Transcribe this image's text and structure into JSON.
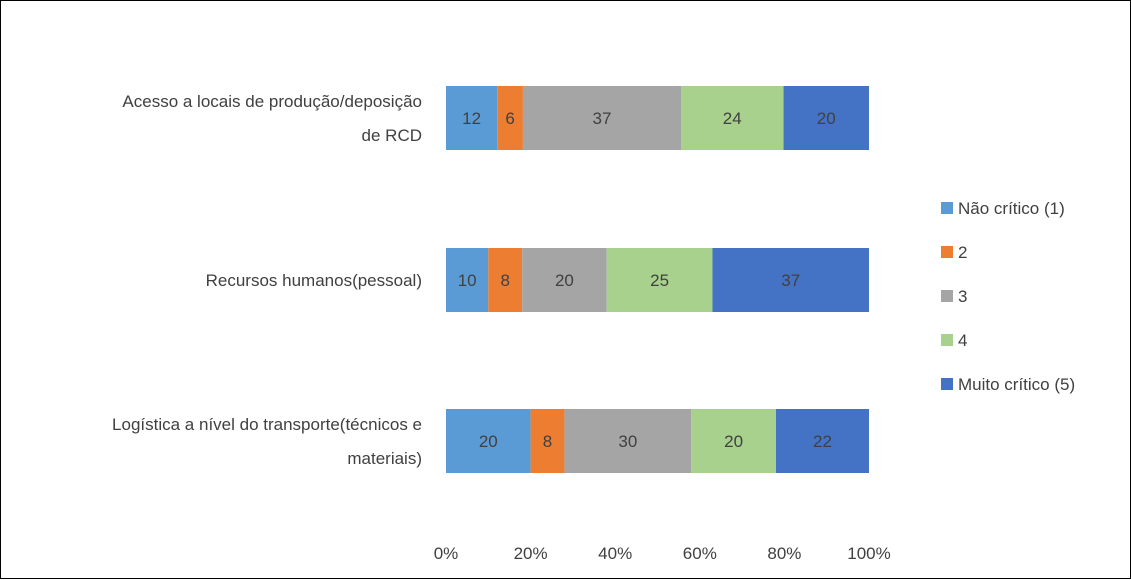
{
  "chart_data": {
    "type": "bar",
    "orientation": "horizontal",
    "stacked": "percent",
    "title": "",
    "xlabel": "",
    "ylabel": "",
    "categories": [
      "Acesso a locais de produção/deposição de RCD",
      "Recursos humanos(pessoal)",
      "Logística a nível do transporte(técnicos e materiais)"
    ],
    "category_lines": [
      [
        "Acesso a locais de produção/deposição",
        "de RCD"
      ],
      [
        "Recursos humanos(pessoal)"
      ],
      [
        "Logística a nível do transporte(técnicos e",
        "materiais)"
      ]
    ],
    "series": [
      {
        "name": "Não crítico (1)",
        "color": "#5B9BD5",
        "values": [
          12,
          10,
          20
        ]
      },
      {
        "name": "2",
        "color": "#ED7D31",
        "values": [
          6,
          8,
          8
        ]
      },
      {
        "name": "3",
        "color": "#A5A5A5",
        "values": [
          37,
          20,
          30
        ]
      },
      {
        "name": "4",
        "color": "#A9D18E",
        "values": [
          24,
          25,
          20
        ]
      },
      {
        "name": "Muito crítico (5)",
        "color": "#4472C4",
        "values": [
          20,
          37,
          22
        ]
      }
    ],
    "xlim": [
      0,
      100
    ],
    "x_ticks": [
      "0%",
      "20%",
      "40%",
      "60%",
      "80%",
      "100%"
    ],
    "legend_position": "right",
    "grid": false,
    "data_labels": true,
    "label_color": "#404040"
  }
}
